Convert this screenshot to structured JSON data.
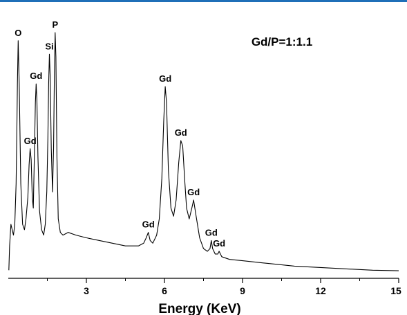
{
  "chart_data": {
    "type": "line",
    "title": "",
    "annotation_text": "Gd/P=1:1.1",
    "xlabel": "Energy (KeV)",
    "ylabel": "",
    "xlim": [
      0,
      15
    ],
    "x_ticks": [
      3,
      6,
      9,
      12,
      15
    ],
    "grid": false,
    "series": [
      {
        "values_xy": [
          [
            0.02,
            0.03
          ],
          [
            0.05,
            0.12
          ],
          [
            0.1,
            0.2
          ],
          [
            0.15,
            0.18
          ],
          [
            0.2,
            0.16
          ],
          [
            0.25,
            0.2
          ],
          [
            0.3,
            0.35
          ],
          [
            0.33,
            0.55
          ],
          [
            0.35,
            0.72
          ],
          [
            0.38,
            0.88
          ],
          [
            0.42,
            0.72
          ],
          [
            0.48,
            0.35
          ],
          [
            0.55,
            0.2
          ],
          [
            0.62,
            0.18
          ],
          [
            0.68,
            0.22
          ],
          [
            0.75,
            0.3
          ],
          [
            0.8,
            0.42
          ],
          [
            0.84,
            0.48
          ],
          [
            0.88,
            0.44
          ],
          [
            0.92,
            0.3
          ],
          [
            0.96,
            0.26
          ],
          [
            1.0,
            0.45
          ],
          [
            1.04,
            0.65
          ],
          [
            1.07,
            0.72
          ],
          [
            1.1,
            0.66
          ],
          [
            1.14,
            0.45
          ],
          [
            1.2,
            0.25
          ],
          [
            1.28,
            0.18
          ],
          [
            1.36,
            0.16
          ],
          [
            1.42,
            0.2
          ],
          [
            1.48,
            0.32
          ],
          [
            1.52,
            0.52
          ],
          [
            1.55,
            0.72
          ],
          [
            1.58,
            0.83
          ],
          [
            1.61,
            0.75
          ],
          [
            1.65,
            0.48
          ],
          [
            1.7,
            0.32
          ],
          [
            1.74,
            0.48
          ],
          [
            1.77,
            0.75
          ],
          [
            1.8,
            0.91
          ],
          [
            1.83,
            0.82
          ],
          [
            1.87,
            0.45
          ],
          [
            1.92,
            0.22
          ],
          [
            2.0,
            0.17
          ],
          [
            2.1,
            0.16
          ],
          [
            2.3,
            0.17
          ],
          [
            2.6,
            0.16
          ],
          [
            3.0,
            0.15
          ],
          [
            3.5,
            0.14
          ],
          [
            4.0,
            0.13
          ],
          [
            4.5,
            0.12
          ],
          [
            5.0,
            0.12
          ],
          [
            5.2,
            0.13
          ],
          [
            5.3,
            0.15
          ],
          [
            5.38,
            0.17
          ],
          [
            5.45,
            0.14
          ],
          [
            5.55,
            0.13
          ],
          [
            5.7,
            0.16
          ],
          [
            5.8,
            0.22
          ],
          [
            5.9,
            0.37
          ],
          [
            5.97,
            0.58
          ],
          [
            6.03,
            0.71
          ],
          [
            6.08,
            0.65
          ],
          [
            6.15,
            0.4
          ],
          [
            6.25,
            0.26
          ],
          [
            6.35,
            0.23
          ],
          [
            6.45,
            0.29
          ],
          [
            6.55,
            0.43
          ],
          [
            6.63,
            0.51
          ],
          [
            6.7,
            0.49
          ],
          [
            6.78,
            0.36
          ],
          [
            6.85,
            0.26
          ],
          [
            6.95,
            0.22
          ],
          [
            7.05,
            0.26
          ],
          [
            7.12,
            0.29
          ],
          [
            7.2,
            0.24
          ],
          [
            7.35,
            0.15
          ],
          [
            7.5,
            0.11
          ],
          [
            7.65,
            0.1
          ],
          [
            7.75,
            0.11
          ],
          [
            7.8,
            0.14
          ],
          [
            7.85,
            0.11
          ],
          [
            7.95,
            0.09
          ],
          [
            8.05,
            0.09
          ],
          [
            8.1,
            0.1
          ],
          [
            8.2,
            0.08
          ],
          [
            8.5,
            0.07
          ],
          [
            9.0,
            0.065
          ],
          [
            10.0,
            0.055
          ],
          [
            11.0,
            0.045
          ],
          [
            12.0,
            0.04
          ],
          [
            13.0,
            0.035
          ],
          [
            14.0,
            0.03
          ],
          [
            15.0,
            0.028
          ]
        ]
      }
    ],
    "peak_labels": [
      {
        "text": "O",
        "x": 0.38,
        "y": 0.88
      },
      {
        "text": "Gd",
        "x": 0.84,
        "y": 0.48
      },
      {
        "text": "Gd",
        "x": 1.07,
        "y": 0.72
      },
      {
        "text": "Si",
        "x": 1.58,
        "y": 0.83
      },
      {
        "text": "P",
        "x": 1.8,
        "y": 0.91
      },
      {
        "text": "Gd",
        "x": 5.38,
        "y": 0.17
      },
      {
        "text": "Gd",
        "x": 6.03,
        "y": 0.71
      },
      {
        "text": "Gd",
        "x": 6.63,
        "y": 0.51
      },
      {
        "text": "Gd",
        "x": 7.12,
        "y": 0.29
      },
      {
        "text": "Gd",
        "x": 7.8,
        "y": 0.14
      },
      {
        "text": "Gd",
        "x": 8.1,
        "y": 0.1
      }
    ],
    "colors": {
      "line": "#000000",
      "top_rule": "#1f6fb8"
    }
  }
}
